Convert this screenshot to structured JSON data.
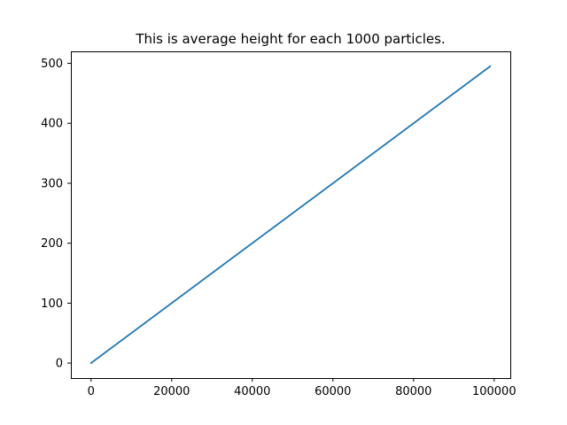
{
  "chart_data": {
    "type": "line",
    "title": "This is average height for each 1000 particles.",
    "xlabel": "",
    "ylabel": "",
    "xlim": [
      -5000,
      104000
    ],
    "ylim": [
      -25,
      520
    ],
    "x_ticks": [
      0,
      20000,
      40000,
      60000,
      80000,
      100000
    ],
    "y_ticks": [
      0,
      100,
      200,
      300,
      400,
      500
    ],
    "grid": false,
    "legend": "none",
    "series": [
      {
        "color": "#1f77b4",
        "x": [
          0,
          99000
        ],
        "y": [
          0,
          495
        ]
      }
    ]
  }
}
